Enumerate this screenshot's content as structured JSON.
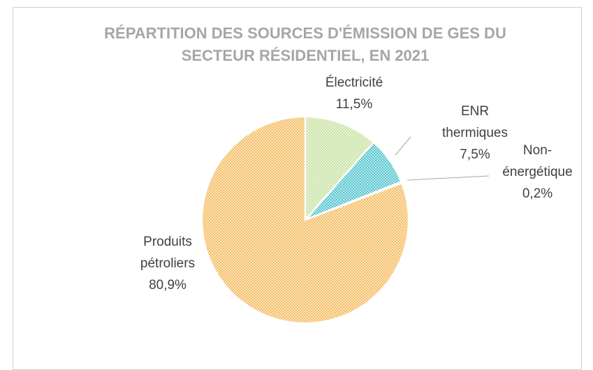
{
  "chart_data": {
    "type": "pie",
    "title": "RÉPARTITION DES SOURCES D'ÉMISSION DE GES DU SECTEUR RÉSIDENTIEL, EN 2021",
    "categories": [
      "Électricité",
      "ENR thermiques",
      "Non-énergétique",
      "Produits pétroliers"
    ],
    "values": [
      11.5,
      7.5,
      0.2,
      80.9
    ],
    "value_labels": [
      "11,5%",
      "7,5%",
      "0,2%",
      "80,9%"
    ],
    "colors": [
      "#c9e3a3",
      "#55c6d0",
      "#9aa0a6",
      "#f6bd62"
    ],
    "hatched": true
  }
}
